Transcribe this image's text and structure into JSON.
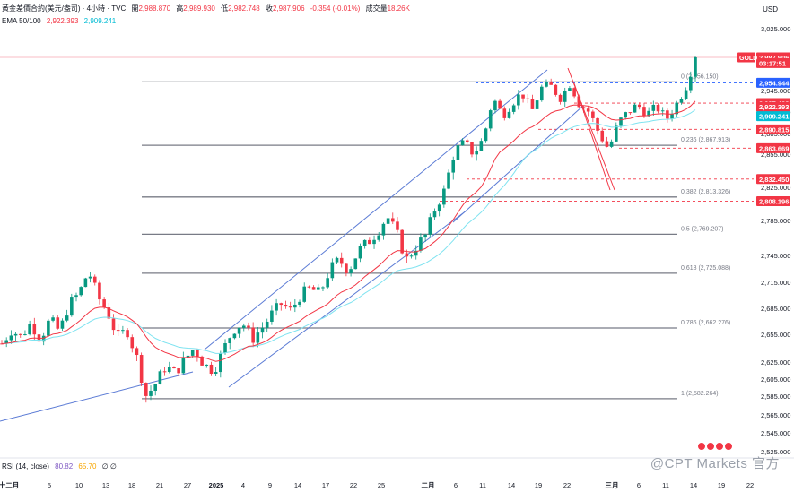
{
  "header": {
    "symbol": "黃金差價合約(美元/盎司) · 4小時 · TVC",
    "open_label": "開",
    "open": "2,988.870",
    "high_label": "高",
    "high": "2,989.930",
    "low_label": "低",
    "low": "2,982.748",
    "close_label": "收",
    "close": "2,987.906",
    "change": "-0.354 (-0.01%)",
    "volume_label": "成交量",
    "volume": "18.26K",
    "ema_label": "EMA 50/100",
    "ema50": "2,922.393",
    "ema100": "2,909.241",
    "currency": "USD",
    "rsi_label": "RSI (14, close)",
    "rsi_value": "80.82",
    "rsi_ma": "65.70",
    "rsi_extra": "∅ ∅"
  },
  "watermark": "@CPT Markets 官方",
  "chart_data": {
    "type": "candlestick",
    "ylim": [
      2525,
      3025
    ],
    "y_ticks": [
      "3,025.000",
      "2,945.000",
      "2,915.000",
      "2,885.000",
      "2,855.000",
      "2,825.000",
      "2,785.000",
      "2,745.000",
      "2,715.000",
      "2,685.000",
      "2,655.000",
      "2,625.000",
      "2,605.000",
      "2,585.000",
      "2,565.000",
      "2,545.000",
      "2,525.000"
    ],
    "y_tick_values": [
      3025,
      2945,
      2915,
      2885,
      2855,
      2825,
      2785,
      2745,
      2715,
      2685,
      2655,
      2625,
      2605,
      2585,
      2565,
      2545,
      2525
    ],
    "x_ticks": [
      "十二月",
      "5",
      "10",
      "13",
      "18",
      "21",
      "27",
      "2025",
      "4",
      "9",
      "14",
      "17",
      "22",
      "25",
      "二月",
      "6",
      "11",
      "14",
      "19",
      "22",
      "三月",
      "6",
      "11",
      "14",
      "19",
      "22"
    ],
    "x_tick_bold": [
      "十二月",
      "2025",
      "二月",
      "三月"
    ],
    "price_path": [
      2645,
      2660,
      2652,
      2668,
      2650,
      2672,
      2658,
      2690,
      2702,
      2728,
      2698,
      2680,
      2652,
      2660,
      2630,
      2585,
      2600,
      2620,
      2612,
      2628,
      2640,
      2622,
      2615,
      2638,
      2660,
      2668,
      2650,
      2662,
      2678,
      2690,
      2682,
      2700,
      2708,
      2702,
      2728,
      2740,
      2728,
      2750,
      2760,
      2772,
      2790,
      2770,
      2740,
      2755,
      2768,
      2800,
      2822,
      2860,
      2872,
      2855,
      2878,
      2935,
      2910,
      2928,
      2942,
      2915,
      2948,
      2950,
      2935,
      2955,
      2925,
      2915,
      2885,
      2862,
      2900,
      2915,
      2925,
      2912,
      2922,
      2905,
      2925,
      2950,
      2988
    ],
    "ema50": "2,922.393",
    "ema100": "2,909.241",
    "fib_levels": [
      {
        "label": "0 (2,956.150)",
        "value": 2956.15
      },
      {
        "label": "0.236 (2,867.913)",
        "value": 2867.913
      },
      {
        "label": "0.382 (2,813.326)",
        "value": 2813.326
      },
      {
        "label": "0.5 (2,769.207)",
        "value": 2769.207
      },
      {
        "label": "0.618 (2,725.088)",
        "value": 2725.088
      },
      {
        "label": "0.786 (2,662.276)",
        "value": 2662.276
      },
      {
        "label": "1 (2,582.264)",
        "value": 2582.264
      }
    ],
    "price_labels": [
      {
        "text": "2,987.906",
        "value": 2987.906,
        "color": "#f23645"
      },
      {
        "text": "03:17:51",
        "value": 2980.5,
        "color": "#f23645"
      },
      {
        "text": "2,954.944",
        "value": 2954.944,
        "color": "#2962ff"
      },
      {
        "text": "2,927.468",
        "value": 2927.468,
        "color": "#f23645"
      },
      {
        "text": "2,922.393",
        "value": 2922.393,
        "color": "#f23645"
      },
      {
        "text": "2,909.241",
        "value": 2909.241,
        "color": "#00bcd4"
      },
      {
        "text": "2,890.815",
        "value": 2890.815,
        "color": "#f23645"
      },
      {
        "text": "2,863.669",
        "value": 2863.669,
        "color": "#f23645"
      },
      {
        "text": "2,832.450",
        "value": 2832.45,
        "color": "#f23645"
      },
      {
        "text": "2,808.196",
        "value": 2808.196,
        "color": "#f23645"
      }
    ],
    "symbol_tag": "GOLD",
    "colors": {
      "up": "#089981",
      "down": "#f23645",
      "ema50": "#f23645",
      "ema100": "#7fe3f0",
      "trend": "#5b7bd5"
    }
  }
}
